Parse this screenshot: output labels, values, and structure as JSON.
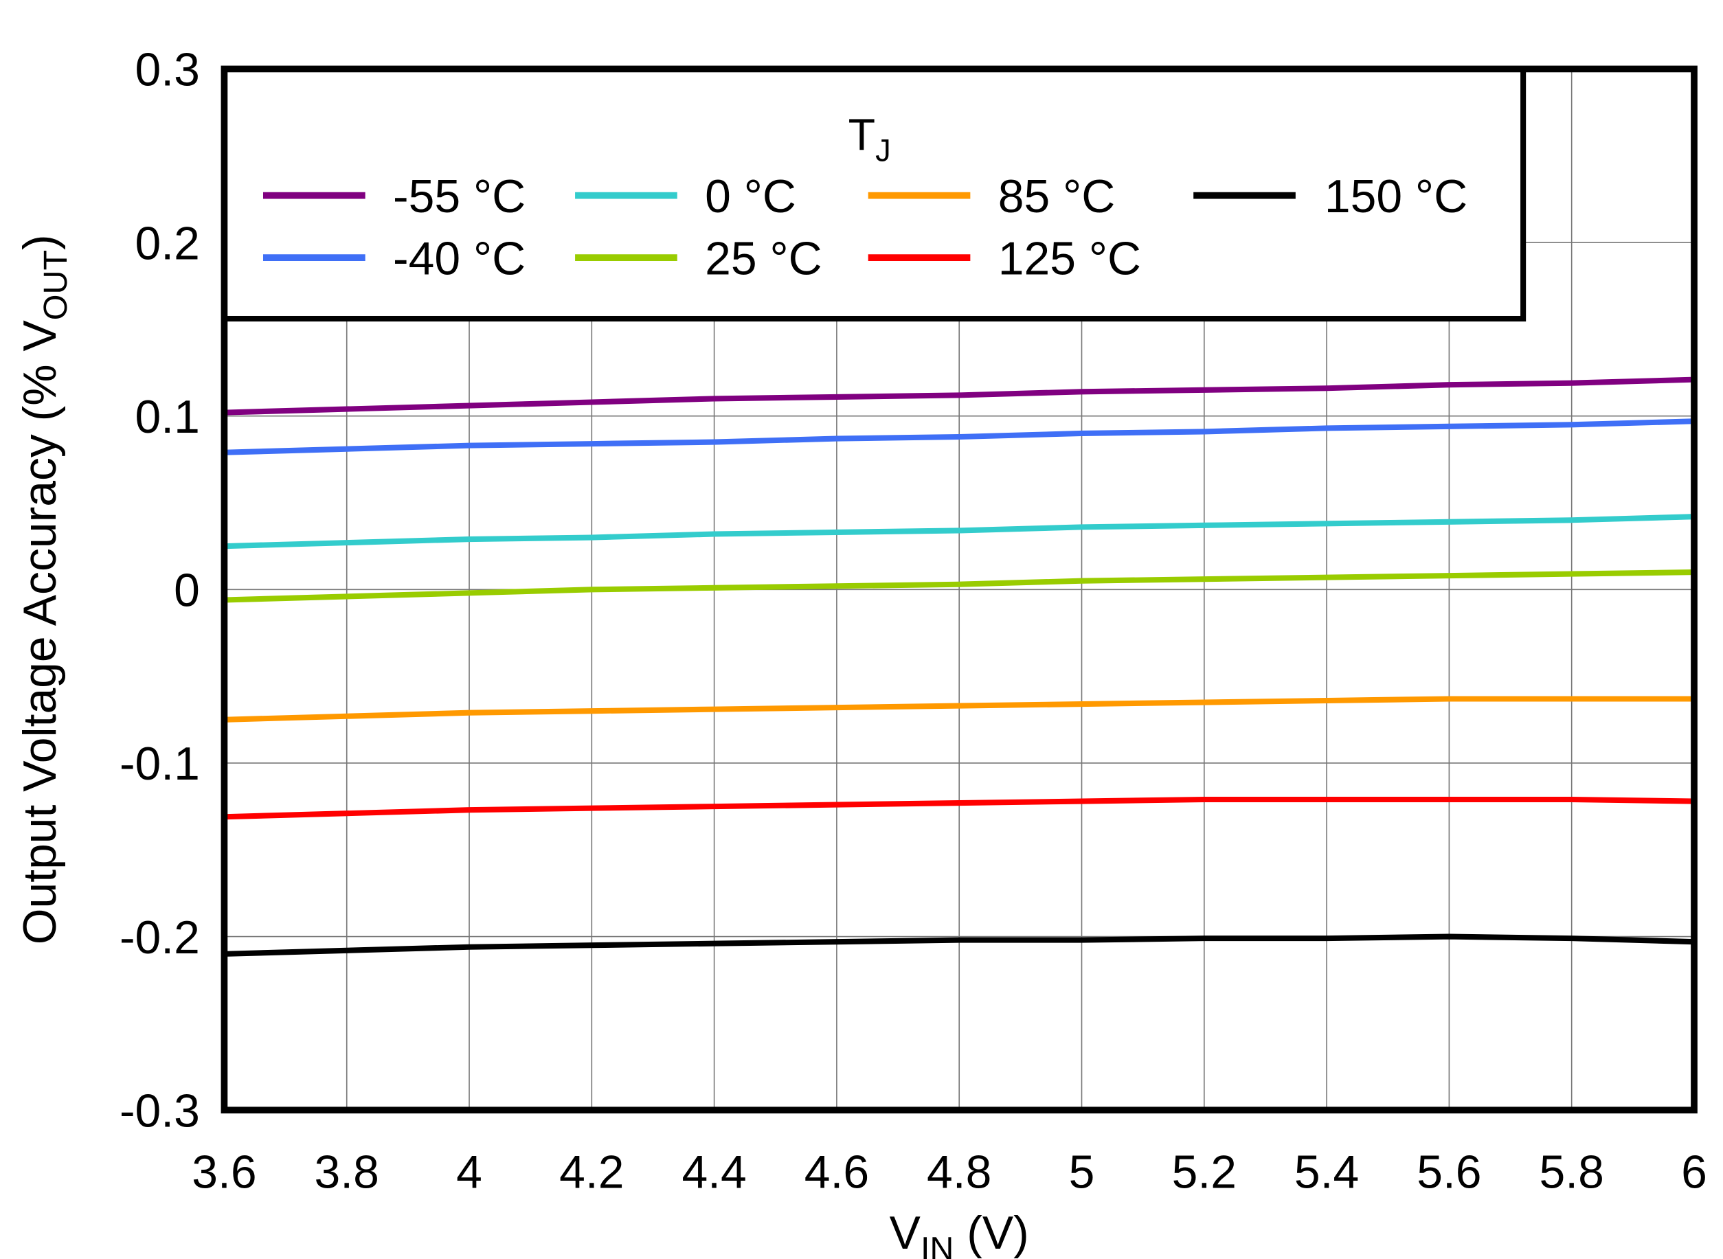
{
  "chart_data": {
    "type": "line",
    "title": "",
    "xlabel": "V",
    "xlabel_sub": "IN",
    "xlabel_unit": " (V)",
    "ylabel": "Output Voltage Accuracy (% V",
    "ylabel_sub": "OUT",
    "ylabel_end": ")",
    "xlim": [
      3.6,
      6
    ],
    "ylim": [
      -0.3,
      0.3
    ],
    "grid": true,
    "xticks": [
      "3.6",
      "3.8",
      "4",
      "4.2",
      "4.4",
      "4.6",
      "4.8",
      "5",
      "5.2",
      "5.4",
      "5.6",
      "5.8",
      "6"
    ],
    "yticks": [
      "0.3",
      "0.2",
      "0.1",
      "0",
      "-0.1",
      "-0.2",
      "-0.3"
    ],
    "legend": {
      "title": "T",
      "title_sub": "J",
      "placement": "top-left"
    },
    "x": [
      3.6,
      3.8,
      4.0,
      4.2,
      4.4,
      4.6,
      4.8,
      5.0,
      5.2,
      5.4,
      5.6,
      5.8,
      6.0
    ],
    "series": [
      {
        "name": "-55 °C",
        "color": "#800080",
        "values": [
          0.102,
          0.104,
          0.106,
          0.108,
          0.11,
          0.111,
          0.112,
          0.114,
          0.115,
          0.116,
          0.118,
          0.119,
          0.121
        ]
      },
      {
        "name": "-40 °C",
        "color": "#3f6ff6",
        "values": [
          0.079,
          0.081,
          0.083,
          0.084,
          0.085,
          0.087,
          0.088,
          0.09,
          0.091,
          0.093,
          0.094,
          0.095,
          0.097
        ]
      },
      {
        "name": "0 °C",
        "color": "#33cccc",
        "values": [
          0.025,
          0.027,
          0.029,
          0.03,
          0.032,
          0.033,
          0.034,
          0.036,
          0.037,
          0.038,
          0.039,
          0.04,
          0.042
        ]
      },
      {
        "name": "25 °C",
        "color": "#99cc00",
        "values": [
          -0.006,
          -0.004,
          -0.002,
          0.0,
          0.001,
          0.002,
          0.003,
          0.005,
          0.006,
          0.007,
          0.008,
          0.009,
          0.01
        ]
      },
      {
        "name": "85 °C",
        "color": "#ff9900",
        "values": [
          -0.075,
          -0.073,
          -0.071,
          -0.07,
          -0.069,
          -0.068,
          -0.067,
          -0.066,
          -0.065,
          -0.064,
          -0.063,
          -0.063,
          -0.063
        ]
      },
      {
        "name": "125 °C",
        "color": "#ff0000",
        "values": [
          -0.131,
          -0.129,
          -0.127,
          -0.126,
          -0.125,
          -0.124,
          -0.123,
          -0.122,
          -0.121,
          -0.121,
          -0.121,
          -0.121,
          -0.122
        ]
      },
      {
        "name": "150 °C",
        "color": "#000000",
        "values": [
          -0.21,
          -0.208,
          -0.206,
          -0.205,
          -0.204,
          -0.203,
          -0.202,
          -0.202,
          -0.201,
          -0.201,
          -0.2,
          -0.201,
          -0.203
        ]
      }
    ]
  }
}
